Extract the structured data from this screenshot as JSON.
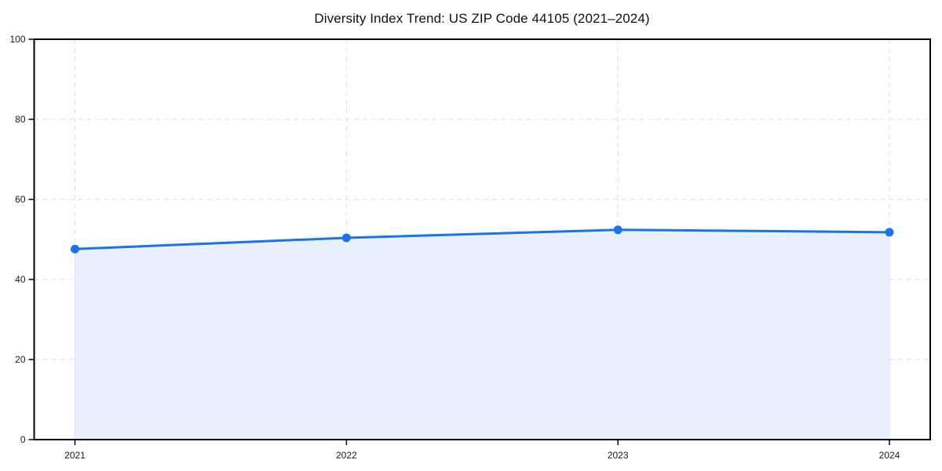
{
  "title": "Diversity Index Trend: US ZIP Code 44105 (2021–2024)",
  "chart_data": {
    "type": "line",
    "title": "Diversity Index Trend: US ZIP Code 44105 (2021–2024)",
    "categories": [
      "2021",
      "2022",
      "2023",
      "2024"
    ],
    "series": [
      {
        "name": "Diversity Index",
        "values": [
          47.6,
          50.4,
          52.4,
          51.8
        ]
      }
    ],
    "xlabel": "",
    "ylabel": "",
    "ylim": [
      0,
      100
    ],
    "yticks": [
      0,
      20,
      40,
      60,
      80,
      100
    ],
    "grid": true,
    "grid_style": "dashed",
    "legend_position": "none",
    "area_fill": true,
    "marker": "circle",
    "colors": {
      "line": "#1a73e8",
      "marker": "#1a73e8",
      "fill": "#e8f0fe",
      "fill_edge": "#d2e3fc",
      "grid": "#dedede",
      "axis": "#000000",
      "tick_label": "#1a1a1a",
      "background": "#ffffff"
    }
  }
}
